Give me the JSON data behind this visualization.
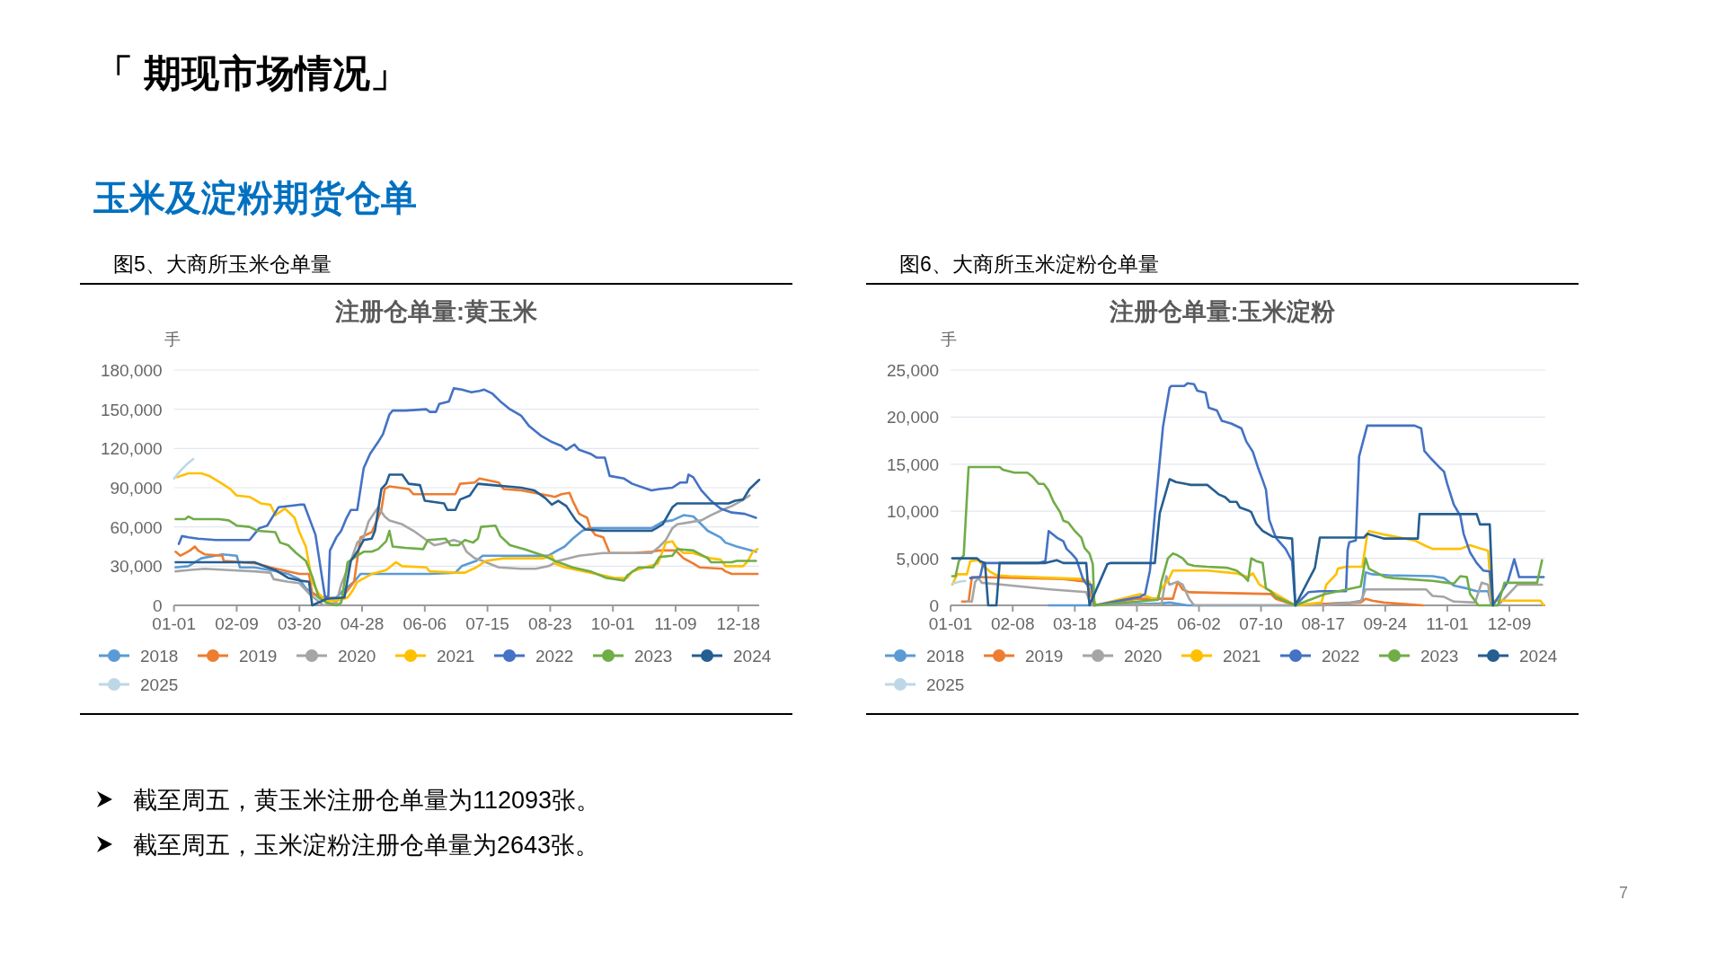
{
  "chart_data": [
    {
      "type": "line",
      "title": "注册仓单量:黄玉米",
      "ylabel": "手",
      "annotations": [
        "「 期现市场情况」",
        "玉米及淀粉期货仓单",
        "图5、大商所玉米仓单量",
        "截至周五，黄玉米注册仓单量为112093张。"
      ],
      "xlim": [
        "--01-01",
        "--12-31"
      ],
      "xticks": [
        {
          "value": "--01-01",
          "label": "01-01"
        },
        {
          "value": "--02-09",
          "label": "02-09"
        },
        {
          "value": "--03-20",
          "label": "03-20"
        },
        {
          "value": "--04-28",
          "label": "04-28"
        },
        {
          "value": "--06-06",
          "label": "06-06"
        },
        {
          "value": "--07-15",
          "label": "07-15"
        },
        {
          "value": "--08-23",
          "label": "08-23"
        },
        {
          "value": "--10-01",
          "label": "10-01"
        },
        {
          "value": "--11-09",
          "label": "11-09"
        },
        {
          "value": "--12-18",
          "label": "12-18"
        }
      ],
      "ylim": [
        0,
        180000
      ],
      "yticks": [
        0,
        {
          "value": 30000,
          "label": "30,000"
        },
        {
          "value": 60000,
          "label": "60,000"
        },
        {
          "value": 90000,
          "label": "90,000"
        },
        {
          "value": 120000,
          "label": "120,000"
        },
        {
          "value": 150000,
          "label": "150,000"
        },
        {
          "value": 180000,
          "label": "180,000"
        }
      ],
      "grid": "y",
      "legend": "bottom",
      "series": [
        {
          "name": "2018",
          "color": "#5b9bd5",
          "x": [
            "--01-02",
            "--01-10",
            "--01-18",
            "--01-31",
            "--02-09",
            "--02-11",
            "--02-20",
            "--03-02",
            "--03-13",
            "--03-20",
            "--03-24",
            "--03-29",
            "--04-02",
            "--04-12",
            "--04-16",
            "--04-23",
            "--04-27",
            "--06-09",
            "--06-25",
            "--06-29",
            "--07-08",
            "--07-12",
            "--08-22",
            "--08-26",
            "--09-01",
            "--09-06",
            "--09-12",
            "--09-16",
            "--10-25",
            "--11-01",
            "--11-07",
            "--11-14",
            "--11-20",
            "--11-25",
            "--11-29",
            "--12-07",
            "--12-10",
            "--12-17",
            "--12-29"
          ],
          "values": [
            29000,
            30000,
            36000,
            39000,
            38000,
            29000,
            29000,
            27000,
            24000,
            20000,
            13000,
            9000,
            5000,
            6000,
            11000,
            18000,
            24000,
            24000,
            25000,
            30000,
            34000,
            38000,
            38000,
            41000,
            45000,
            51000,
            57000,
            59000,
            59000,
            64000,
            65000,
            69000,
            68000,
            62000,
            57000,
            52000,
            48000,
            45000,
            41000
          ]
        },
        {
          "name": "2019",
          "color": "#ed7d31",
          "x": [
            "--01-02",
            "--01-05",
            "--01-08",
            "--01-11",
            "--01-14",
            "--01-16",
            "--01-20",
            "--01-31",
            "--02-01",
            "--02-22",
            "--03-02",
            "--03-13",
            "--03-20",
            "--03-26",
            "--03-28",
            "--04-04",
            "--04-15",
            "--04-23",
            "--04-27",
            "--05-04",
            "--05-07",
            "--05-10",
            "--05-12",
            "--05-15",
            "--05-27",
            "--05-30",
            "--06-25",
            "--06-28",
            "--07-07",
            "--07-10",
            "--07-22",
            "--07-25",
            "--08-05",
            "--08-22",
            "--08-26",
            "--08-30",
            "--09-04",
            "--09-06",
            "--09-10",
            "--09-15",
            "--09-17",
            "--09-20",
            "--09-25",
            "--09-29",
            "--10-13",
            "--10-25",
            "--10-30",
            "--11-09",
            "--11-14",
            "--11-20",
            "--11-24",
            "--12-08",
            "--12-10",
            "--12-14",
            "--12-30"
          ],
          "values": [
            41000,
            38000,
            40000,
            42000,
            45000,
            42000,
            39000,
            38000,
            34000,
            32000,
            29000,
            26000,
            24000,
            24000,
            9000,
            6000,
            5000,
            18000,
            52000,
            56000,
            64000,
            73000,
            89000,
            91000,
            89000,
            85000,
            85000,
            93000,
            94000,
            97000,
            94000,
            89000,
            88000,
            84000,
            83000,
            85000,
            86000,
            80000,
            70000,
            67000,
            59000,
            54000,
            52000,
            40000,
            40000,
            41000,
            42000,
            42000,
            36000,
            32000,
            29000,
            28000,
            26000,
            24000,
            24000
          ]
        },
        {
          "name": "2020",
          "color": "#a5a5a5",
          "x": [
            "--01-02",
            "--01-10",
            "--01-20",
            "--02-04",
            "--02-20",
            "--03-02",
            "--03-04",
            "--03-13",
            "--03-20",
            "--03-26",
            "--04-04",
            "--04-12",
            "--04-15",
            "--04-21",
            "--04-25",
            "--04-29",
            "--05-02",
            "--05-08",
            "--05-12",
            "--05-15",
            "--05-23",
            "--05-30",
            "--06-07",
            "--06-12",
            "--06-16",
            "--06-24",
            "--06-29",
            "--07-02",
            "--07-07",
            "--07-12",
            "--07-22",
            "--08-05",
            "--08-14",
            "--08-22",
            "--08-28",
            "--09-10",
            "--09-25",
            "--10-25",
            "--10-30",
            "--11-03",
            "--11-07",
            "--11-10",
            "--11-25",
            "--12-01",
            "--12-08",
            "--12-14",
            "--12-20",
            "--12-25"
          ],
          "values": [
            26000,
            27000,
            28000,
            27000,
            26000,
            25000,
            20000,
            18000,
            17000,
            9000,
            0,
            2000,
            16000,
            34000,
            48000,
            52000,
            64000,
            75000,
            68000,
            65000,
            62000,
            57000,
            50000,
            46000,
            47000,
            50000,
            48000,
            41000,
            36000,
            34000,
            29000,
            28000,
            28000,
            30000,
            34000,
            38000,
            40000,
            40000,
            45000,
            50000,
            59000,
            62000,
            65000,
            69000,
            73000,
            76000,
            80000,
            84000
          ]
        },
        {
          "name": "2021",
          "color": "#ffc000",
          "x": [
            "--01-03",
            "--01-05",
            "--01-10",
            "--01-18",
            "--01-23",
            "--01-31",
            "--02-05",
            "--02-09",
            "--02-17",
            "--02-24",
            "--03-02",
            "--03-05",
            "--03-11",
            "--03-17",
            "--03-20",
            "--03-24",
            "--03-28",
            "--04-01",
            "--04-06",
            "--04-14",
            "--04-19",
            "--04-22",
            "--04-25",
            "--05-04",
            "--05-13",
            "--05-19",
            "--05-23",
            "--06-07",
            "--06-09",
            "--06-25",
            "--07-01",
            "--07-08",
            "--07-14",
            "--07-25",
            "--08-19",
            "--08-24",
            "--08-26",
            "--09-01",
            "--09-17",
            "--10-02",
            "--10-10",
            "--10-13",
            "--10-21",
            "--10-29",
            "--11-03",
            "--11-07",
            "--11-09",
            "--11-14",
            "--11-20",
            "--11-25",
            "--12-01",
            "--12-07",
            "--12-10",
            "--12-21",
            "--12-24",
            "--12-27",
            "--12-30"
          ],
          "values": [
            98000,
            99000,
            101000,
            101000,
            99000,
            93000,
            89000,
            84000,
            83000,
            78000,
            77000,
            69000,
            74000,
            67000,
            56000,
            45000,
            18000,
            9000,
            3000,
            4000,
            6000,
            11000,
            18000,
            24000,
            27000,
            33000,
            30000,
            29000,
            26000,
            25000,
            25000,
            29000,
            34000,
            36000,
            36000,
            38000,
            32000,
            29000,
            25000,
            21000,
            21000,
            26000,
            29000,
            32000,
            48000,
            49000,
            45000,
            40000,
            40000,
            38000,
            36000,
            35000,
            30000,
            30000,
            34000,
            41000,
            43000
          ]
        },
        {
          "name": "2022",
          "color": "#4472c4",
          "x": [
            "--01-04",
            "--01-06",
            "--01-10",
            "--01-16",
            "--01-27",
            "--02-17",
            "--02-23",
            "--02-28",
            "--03-07",
            "--03-20",
            "--03-23",
            "--03-30",
            "--04-05",
            "--04-07",
            "--04-08",
            "--04-12",
            "--04-15",
            "--04-18",
            "--04-21",
            "--04-25",
            "--04-29",
            "--05-03",
            "--05-08",
            "--05-11",
            "--05-15",
            "--05-17",
            "--05-25",
            "--06-07",
            "--06-09",
            "--06-13",
            "--06-15",
            "--06-21",
            "--06-24",
            "--06-29",
            "--07-05",
            "--07-10",
            "--07-13",
            "--07-18",
            "--07-23",
            "--07-29",
            "--08-05",
            "--08-10",
            "--08-17",
            "--08-24",
            "--08-30",
            "--09-02",
            "--09-07",
            "--09-10",
            "--09-17",
            "--09-21",
            "--09-26",
            "--09-29",
            "--10-08",
            "--10-13",
            "--10-25",
            "--10-30",
            "--11-07",
            "--11-12",
            "--11-16",
            "--11-17",
            "--11-20",
            "--11-25",
            "--12-01",
            "--12-07",
            "--12-14",
            "--12-22",
            "--12-29"
          ],
          "values": [
            47000,
            53000,
            52000,
            51000,
            50000,
            50000,
            59000,
            61000,
            75000,
            77000,
            77000,
            54000,
            6000,
            7000,
            42000,
            52000,
            57000,
            66000,
            73000,
            73000,
            105000,
            116000,
            125000,
            131000,
            146000,
            149000,
            149000,
            150000,
            148000,
            148000,
            154000,
            156000,
            166000,
            165000,
            163000,
            164000,
            165000,
            162000,
            156000,
            150000,
            145000,
            137000,
            130000,
            125000,
            122000,
            119000,
            123000,
            119000,
            116000,
            113000,
            113000,
            99000,
            97000,
            93000,
            88000,
            89000,
            90000,
            94000,
            94000,
            100000,
            98000,
            88000,
            80000,
            74000,
            71000,
            70000,
            67000
          ]
        },
        {
          "name": "2023",
          "color": "#70ad47",
          "x": [
            "--01-02",
            "--01-08",
            "--01-10",
            "--01-13",
            "--01-29",
            "--02-04",
            "--02-09",
            "--02-17",
            "--02-22",
            "--03-05",
            "--03-08",
            "--03-13",
            "--03-18",
            "--03-24",
            "--03-28",
            "--04-01",
            "--04-06",
            "--04-12",
            "--04-15",
            "--04-19",
            "--04-25",
            "--04-29",
            "--05-04",
            "--05-08",
            "--05-13",
            "--05-15",
            "--05-17",
            "--05-25",
            "--06-05",
            "--06-08",
            "--06-19",
            "--06-22",
            "--06-27",
            "--07-01",
            "--07-06",
            "--07-09",
            "--07-11",
            "--07-20",
            "--07-23",
            "--07-29",
            "--08-07",
            "--08-19",
            "--08-26",
            "--09-06",
            "--09-17",
            "--09-27",
            "--10-08",
            "--10-10",
            "--10-17",
            "--10-26",
            "--10-30",
            "--11-07",
            "--11-10",
            "--11-20",
            "--11-29",
            "--12-01",
            "--12-14",
            "--12-17",
            "--12-29"
          ],
          "values": [
            66000,
            66000,
            68000,
            66000,
            66000,
            65000,
            61000,
            60000,
            57000,
            56000,
            48000,
            46000,
            40000,
            34000,
            22000,
            6000,
            2000,
            0,
            2000,
            33000,
            38000,
            41000,
            41000,
            43000,
            49000,
            57000,
            45000,
            44000,
            43000,
            50000,
            51000,
            46000,
            46000,
            50000,
            48000,
            51000,
            60000,
            61000,
            53000,
            46000,
            43000,
            38000,
            34000,
            29000,
            26000,
            21000,
            19000,
            23000,
            29000,
            29000,
            37000,
            38000,
            43000,
            42000,
            36000,
            33000,
            33000,
            34000,
            34000
          ]
        },
        {
          "name": "2024",
          "color": "#255e91",
          "x": [
            "--01-02",
            "--02-20",
            "--02-26",
            "--03-05",
            "--03-13",
            "--03-20",
            "--03-26",
            "--03-28",
            "--04-06",
            "--04-17",
            "--04-21",
            "--04-25",
            "--04-29",
            "--05-04",
            "--05-06",
            "--05-10",
            "--05-13",
            "--05-15",
            "--05-23",
            "--05-27",
            "--06-03",
            "--06-06",
            "--06-18",
            "--06-20",
            "--06-25",
            "--06-28",
            "--07-04",
            "--07-09",
            "--07-18",
            "--08-05",
            "--08-13",
            "--08-20",
            "--08-24",
            "--08-28",
            "--09-02",
            "--09-08",
            "--09-14",
            "--09-25",
            "--10-25",
            "--10-28",
            "--11-01",
            "--11-07",
            "--11-10",
            "--12-12",
            "--12-16",
            "--12-21",
            "--12-25",
            "--12-31"
          ],
          "values": [
            33000,
            33000,
            30000,
            27000,
            21000,
            19000,
            18000,
            0,
            5000,
            6000,
            34000,
            41000,
            50000,
            51000,
            57000,
            89000,
            93000,
            100000,
            100000,
            93000,
            92000,
            80000,
            78000,
            73000,
            73000,
            81000,
            84000,
            93000,
            92000,
            90000,
            88000,
            82000,
            77000,
            80000,
            76000,
            65000,
            58000,
            57000,
            57000,
            59000,
            62000,
            75000,
            78000,
            78000,
            80000,
            81000,
            89000,
            96000
          ]
        },
        {
          "name": "2025",
          "color": "#bdd7e7",
          "x": [
            "--01-01",
            "--01-05",
            "--01-09",
            "--01-13"
          ],
          "values": [
            97000,
            103000,
            108000,
            112000
          ]
        }
      ]
    },
    {
      "type": "line",
      "title": "注册仓单量:玉米淀粉",
      "ylabel": "手",
      "annotations": [
        "图6、大商所玉米淀粉仓单量",
        "截至周五，玉米淀粉注册仓单量为2643张。",
        "7"
      ],
      "xlim": [
        "--01-01",
        "--12-31"
      ],
      "xticks": [
        {
          "value": "--01-01",
          "label": "01-01"
        },
        {
          "value": "--02-08",
          "label": "02-08"
        },
        {
          "value": "--03-18",
          "label": "03-18"
        },
        {
          "value": "--04-25",
          "label": "04-25"
        },
        {
          "value": "--06-02",
          "label": "06-02"
        },
        {
          "value": "--07-10",
          "label": "07-10"
        },
        {
          "value": "--08-17",
          "label": "08-17"
        },
        {
          "value": "--09-24",
          "label": "09-24"
        },
        {
          "value": "--11-01",
          "label": "11-01"
        },
        {
          "value": "--12-09",
          "label": "12-09"
        }
      ],
      "ylim": [
        0,
        25000
      ],
      "yticks": [
        0,
        {
          "value": 5000,
          "label": "5,000"
        },
        {
          "value": 10000,
          "label": "10,000"
        },
        {
          "value": 15000,
          "label": "15,000"
        },
        {
          "value": 20000,
          "label": "20,000"
        },
        {
          "value": 25000,
          "label": "25,000"
        }
      ],
      "grid": "y",
      "legend": "bottom",
      "series": [
        {
          "name": "2018",
          "color": "#5b9bd5",
          "x": [
            "--03-02",
            "--03-25",
            "--05-10",
            "--05-15",
            "--05-26",
            "--07-31",
            "--09-03",
            "--09-10",
            "--09-12",
            "--09-16",
            "--09-26",
            "--10-23",
            "--10-30",
            "--11-05",
            "--11-13",
            "--11-19",
            "--11-26",
            "--11-28"
          ],
          "values": [
            0,
            0,
            200,
            300,
            0,
            0,
            300,
            500,
            3500,
            3300,
            3200,
            3100,
            2900,
            2100,
            1800,
            1500,
            1500,
            0
          ]
        },
        {
          "name": "2019",
          "color": "#ed7d31",
          "x": [
            "--01-08",
            "--01-12",
            "--01-14",
            "--01-18",
            "--03-11",
            "--03-25",
            "--03-30",
            "--04-25",
            "--05-17",
            "--05-20",
            "--05-23",
            "--05-27",
            "--07-16",
            "--07-19",
            "--07-31",
            "--09-09",
            "--09-12",
            "--09-16",
            "--09-23",
            "--10-17"
          ],
          "values": [
            400,
            400,
            3000,
            3000,
            2800,
            2500,
            0,
            700,
            700,
            2500,
            1700,
            1400,
            1200,
            700,
            0,
            300,
            700,
            500,
            300,
            0
          ]
        },
        {
          "name": "2020",
          "color": "#a5a5a5",
          "x": [
            "--01-11",
            "--01-14",
            "--01-16",
            "--01-18",
            "--01-20",
            "--02-02",
            "--02-13",
            "--03-03",
            "--03-25",
            "--03-28",
            "--05-10",
            "--05-13",
            "--05-15",
            "--05-20",
            "--05-23",
            "--05-27",
            "--05-30",
            "--08-18",
            "--09-09",
            "--09-12",
            "--10-19",
            "--10-23",
            "--10-30",
            "--11-05",
            "--11-18",
            "--11-22",
            "--11-26",
            "--11-28",
            "--12-02",
            "--12-14",
            "--12-29"
          ],
          "values": [
            400,
            400,
            2500,
            2900,
            2400,
            2200,
            2000,
            1700,
            1400,
            0,
            100,
            3100,
            2200,
            2500,
            2200,
            700,
            0,
            0,
            400,
            1700,
            1700,
            1000,
            900,
            400,
            300,
            2400,
            2200,
            0,
            0,
            2200,
            2200
          ]
        },
        {
          "name": "2021",
          "color": "#ffc000",
          "x": [
            "--01-02",
            "--01-05",
            "--01-11",
            "--01-13",
            "--01-18",
            "--01-21",
            "--01-25",
            "--01-29",
            "--02-06",
            "--03-07",
            "--03-23",
            "--03-27",
            "--03-29",
            "--03-31",
            "--04-27",
            "--05-07",
            "--05-10",
            "--05-14",
            "--05-17",
            "--06-07",
            "--06-25",
            "--07-02",
            "--07-05",
            "--07-09",
            "--07-19",
            "--07-31",
            "--08-16",
            "--08-19",
            "--08-25",
            "--08-26",
            "--08-31",
            "--09-10",
            "--09-13",
            "--09-14",
            "--09-24",
            "--10-12",
            "--10-19",
            "--10-23",
            "--11-09",
            "--11-15",
            "--11-22",
            "--11-26",
            "--11-28",
            "--12-28",
            "--12-30"
          ],
          "values": [
            2200,
            3300,
            3300,
            4700,
            4800,
            4200,
            3600,
            3200,
            3100,
            2900,
            2800,
            2500,
            900,
            0,
            1200,
            600,
            1800,
            2600,
            3700,
            3700,
            3400,
            3000,
            3400,
            2200,
            1200,
            0,
            300,
            2200,
            3300,
            3900,
            4100,
            4100,
            7500,
            7900,
            7500,
            6900,
            6300,
            6000,
            6000,
            6400,
            6000,
            5800,
            500,
            500,
            0
          ]
        },
        {
          "name": "2022",
          "color": "#4472c4",
          "x": [
            "--01-13",
            "--01-19",
            "--01-21",
            "--02-24",
            "--02-28",
            "--03-02",
            "--03-07",
            "--03-11",
            "--03-13",
            "--03-16",
            "--03-19",
            "--03-23",
            "--03-25",
            "--03-28",
            "--03-30",
            "--04-27",
            "--04-30",
            "--05-03",
            "--05-07",
            "--05-11",
            "--05-15",
            "--05-16",
            "--05-24",
            "--05-26",
            "--05-30",
            "--06-01",
            "--06-06",
            "--06-08",
            "--06-13",
            "--06-16",
            "--06-22",
            "--06-28",
            "--07-01",
            "--07-05",
            "--07-08",
            "--07-11",
            "--07-13",
            "--07-15",
            "--07-19",
            "--07-25",
            "--07-29",
            "--07-31",
            "--08-08",
            "--08-15",
            "--08-31",
            "--09-01",
            "--09-02",
            "--09-06",
            "--09-08",
            "--09-13",
            "--10-12",
            "--10-16",
            "--10-18",
            "--10-22",
            "--10-27",
            "--10-30",
            "--11-01",
            "--11-05",
            "--11-09",
            "--11-11",
            "--11-15",
            "--11-19",
            "--11-23",
            "--11-27",
            "--11-29",
            "--12-08",
            "--12-12",
            "--12-15",
            "--12-30"
          ],
          "values": [
            2900,
            3000,
            4500,
            4500,
            4700,
            7900,
            7200,
            6800,
            6000,
            5500,
            4900,
            2800,
            2300,
            2200,
            0,
            900,
            1200,
            3700,
            11700,
            19000,
            23100,
            23300,
            23300,
            23600,
            23500,
            22800,
            22600,
            21000,
            20700,
            19600,
            19300,
            18800,
            17400,
            16300,
            14700,
            13300,
            12300,
            9100,
            7200,
            6000,
            4700,
            0,
            1400,
            1500,
            1500,
            5900,
            6700,
            6900,
            15800,
            19100,
            19100,
            18800,
            16400,
            15600,
            14700,
            14200,
            12900,
            10700,
            9500,
            7600,
            5600,
            4500,
            3700,
            3600,
            0,
            2500,
            4900,
            3000,
            3000
          ]
        },
        {
          "name": "2023",
          "color": "#70ad47",
          "x": [
            "--01-02",
            "--01-04",
            "--01-06",
            "--01-09",
            "--01-12",
            "--01-31",
            "--02-02",
            "--02-09",
            "--02-17",
            "--02-20",
            "--02-24",
            "--02-27",
            "--03-02",
            "--03-05",
            "--03-09",
            "--03-11",
            "--03-14",
            "--03-18",
            "--03-22",
            "--03-24",
            "--03-27",
            "--03-29",
            "--03-30",
            "--04-05",
            "--05-08",
            "--05-10",
            "--05-14",
            "--05-17",
            "--05-19",
            "--05-23",
            "--05-26",
            "--05-30",
            "--06-07",
            "--06-19",
            "--06-25",
            "--06-30",
            "--07-02",
            "--07-04",
            "--07-07",
            "--07-11",
            "--07-13",
            "--07-16",
            "--07-19",
            "--07-31",
            "--08-18",
            "--09-09",
            "--09-12",
            "--09-14",
            "--09-24",
            "--09-29",
            "--10-23",
            "--11-05",
            "--11-09",
            "--11-13",
            "--11-15",
            "--11-20",
            "--12-02",
            "--12-06",
            "--12-26",
            "--12-29"
          ],
          "values": [
            3100,
            3100,
            4700,
            5300,
            14700,
            14700,
            14400,
            14100,
            14100,
            13700,
            12900,
            12900,
            12200,
            11000,
            9900,
            9000,
            8800,
            7900,
            7200,
            6100,
            5500,
            4400,
            0,
            100,
            600,
            2500,
            5000,
            5500,
            5400,
            5000,
            4400,
            4200,
            4100,
            4000,
            3700,
            3000,
            2600,
            5000,
            4700,
            4500,
            1800,
            1500,
            900,
            0,
            1200,
            2000,
            5000,
            3900,
            3000,
            2900,
            2600,
            2300,
            3100,
            3000,
            1200,
            0,
            0,
            2400,
            2400,
            4800
          ]
        },
        {
          "name": "2024",
          "color": "#255e91",
          "x": [
            "--01-02",
            "--01-17",
            "--01-19",
            "--01-22",
            "--01-24",
            "--01-29",
            "--01-31",
            "--02-28",
            "--03-07",
            "--03-11",
            "--03-25",
            "--03-27",
            "--04-07",
            "--04-09",
            "--05-06",
            "--05-09",
            "--05-15",
            "--05-19",
            "--05-25",
            "--05-28",
            "--06-07",
            "--06-14",
            "--06-18",
            "--06-21",
            "--06-25",
            "--06-27",
            "--07-02",
            "--07-04",
            "--07-07",
            "--07-11",
            "--07-17",
            "--07-29",
            "--07-31",
            "--08-12",
            "--08-15",
            "--09-11",
            "--09-13",
            "--09-23",
            "--10-14",
            "--10-15",
            "--11-19",
            "--11-21",
            "--11-27",
            "--11-29"
          ],
          "values": [
            5000,
            5000,
            4700,
            4500,
            0,
            0,
            4500,
            4500,
            4800,
            4500,
            4500,
            0,
            4400,
            4500,
            4500,
            9800,
            13400,
            13100,
            12900,
            12800,
            12800,
            11800,
            11500,
            11000,
            11000,
            10400,
            10100,
            9900,
            8700,
            7900,
            7300,
            7100,
            0,
            4000,
            7200,
            7200,
            7600,
            7100,
            7100,
            9700,
            9700,
            8600,
            8600,
            0
          ]
        },
        {
          "name": "2025",
          "color": "#bdd7e7",
          "x": [
            "--01-02",
            "--01-06",
            "--01-10"
          ],
          "values": [
            2300,
            2500,
            2600
          ]
        }
      ]
    }
  ]
}
